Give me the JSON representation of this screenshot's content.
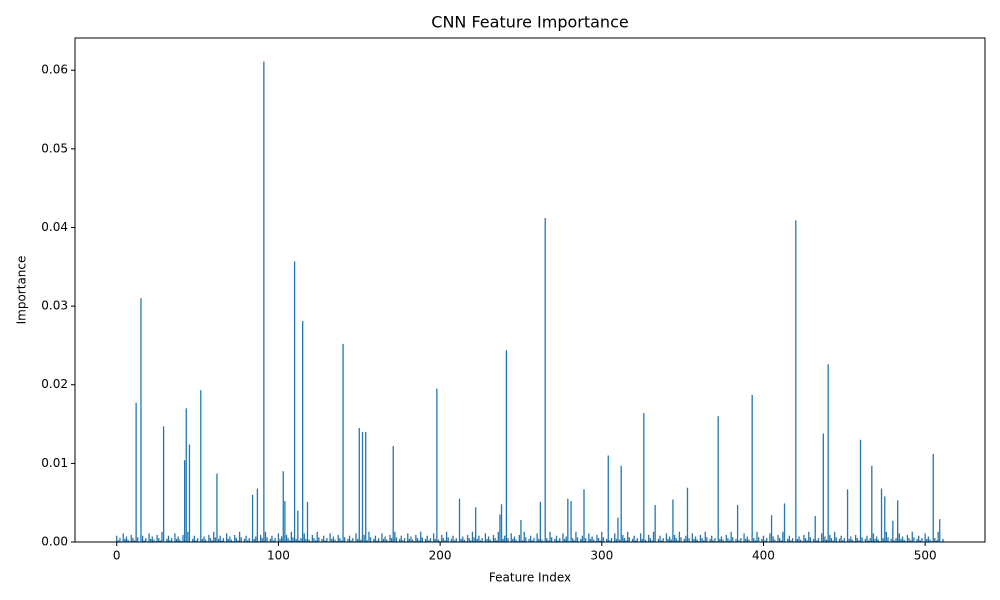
{
  "chart_data": {
    "type": "bar",
    "title": "CNN Feature Importance",
    "xlabel": "Feature Index",
    "ylabel": "Importance",
    "color": "#1f77b4",
    "xlim": [
      -25.8,
      537
    ],
    "xticks": [
      0,
      100,
      200,
      300,
      400,
      500
    ],
    "ylim": [
      0,
      0.0641
    ],
    "yticks": [
      {
        "value": 0,
        "label": "0.00"
      },
      {
        "value": 0.01,
        "label": "0.01"
      },
      {
        "value": 0.02,
        "label": "0.02"
      },
      {
        "value": 0.03,
        "label": "0.03"
      },
      {
        "value": 0.04,
        "label": "0.04"
      },
      {
        "value": 0.05,
        "label": "0.05"
      },
      {
        "value": 0.06,
        "label": "0.06"
      }
    ],
    "values": [
      0.0008,
      0.0002,
      0.0005,
      0,
      0.0011,
      0.0004,
      0.0007,
      0.0003,
      0.0001,
      0.0009,
      0.0005,
      0.0002,
      0.0177,
      0.0006,
      0,
      0.031,
      0.0008,
      0.0002,
      0.0005,
      0,
      0.0011,
      0.0004,
      0.0007,
      0.0003,
      0.0001,
      0.0009,
      0.0005,
      0.0002,
      0.0013,
      0.0147,
      0,
      0.0004,
      0.0008,
      0.0002,
      0.0005,
      0,
      0.0011,
      0.0004,
      0.0007,
      0.0003,
      0.0001,
      0.0009,
      0.0104,
      0.017,
      0.0013,
      0.0124,
      0,
      0.0004,
      0.0008,
      0.0002,
      0.0005,
      0,
      0.0193,
      0.0004,
      0.0007,
      0.0003,
      0.0001,
      0.0009,
      0.0005,
      0.0002,
      0.0013,
      0.0006,
      0.0087,
      0.0004,
      0.0008,
      0.0002,
      0.0005,
      0,
      0.0011,
      0.0004,
      0.0007,
      0.0003,
      0.0001,
      0.0009,
      0.0005,
      0.0002,
      0.0013,
      0.0006,
      0,
      0.0004,
      0.0008,
      0.0002,
      0.0005,
      0,
      0.006,
      0.0004,
      0.0007,
      0.0068,
      0.0001,
      0.0009,
      0.0005,
      0.0611,
      0.0013,
      0.0006,
      0,
      0.0004,
      0.0008,
      0.0002,
      0.0005,
      0,
      0.0011,
      0.0004,
      0.0007,
      0.009,
      0.0052,
      0.0009,
      0.0005,
      0.0002,
      0.0013,
      0.0006,
      0.0357,
      0.0004,
      0.004,
      0.0002,
      0.0005,
      0.0281,
      0.0011,
      0.0004,
      0.0051,
      0.0003,
      0.0001,
      0.0009,
      0.0005,
      0.0002,
      0.0013,
      0.0006,
      0,
      0.0004,
      0.0008,
      0.0002,
      0.0005,
      0,
      0.0011,
      0.0004,
      0.0007,
      0.0003,
      0.0001,
      0.0009,
      0.0005,
      0.0002,
      0.0252,
      0.0006,
      0,
      0.0004,
      0.0008,
      0.0002,
      0.0005,
      0,
      0.0011,
      0.0004,
      0.0145,
      0.0003,
      0.014,
      0.0009,
      0.014,
      0.0002,
      0.0013,
      0.0006,
      0,
      0.0004,
      0.0008,
      0.0002,
      0.0005,
      0,
      0.0011,
      0.0004,
      0.0007,
      0.0003,
      0.0001,
      0.0009,
      0.0005,
      0.0122,
      0.0013,
      0.0006,
      0,
      0.0004,
      0.0008,
      0.0002,
      0.0005,
      0,
      0.0011,
      0.0004,
      0.0007,
      0.0003,
      0.0001,
      0.0009,
      0.0005,
      0.0002,
      0.0013,
      0.0006,
      0,
      0.0004,
      0.0008,
      0.0002,
      0.0005,
      0,
      0.0011,
      0.0004,
      0.0195,
      0.0003,
      0.0001,
      0.0009,
      0.0005,
      0.0002,
      0.0013,
      0.0006,
      0,
      0.0004,
      0.0008,
      0.0002,
      0.0005,
      0,
      0.0055,
      0.0004,
      0.0007,
      0.0003,
      0.0001,
      0.0009,
      0.0005,
      0.0002,
      0.0013,
      0.0006,
      0.0044,
      0.0004,
      0.0008,
      0.0002,
      0.0005,
      0,
      0.0011,
      0.0004,
      0.0007,
      0.0003,
      0.0001,
      0.0009,
      0.0005,
      0.0002,
      0.0013,
      0.0035,
      0.0048,
      0.0004,
      0.0008,
      0.0244,
      0.0005,
      0,
      0.0011,
      0.0004,
      0.0007,
      0.0003,
      0.0001,
      0.0009,
      0.0028,
      0.0002,
      0.0013,
      0.0006,
      0,
      0.0004,
      0.0008,
      0.0002,
      0.0005,
      0,
      0.0011,
      0.0004,
      0.0051,
      0.0003,
      0.0001,
      0.0412,
      0.0005,
      0.0002,
      0.0013,
      0.0006,
      0,
      0.0004,
      0.0008,
      0.0002,
      0.0005,
      0,
      0.0011,
      0.0004,
      0.0007,
      0.0055,
      0.0001,
      0.0052,
      0.0005,
      0.0002,
      0.0013,
      0.0006,
      0,
      0.0004,
      0.0008,
      0.0067,
      0.0005,
      0,
      0.0011,
      0.0004,
      0.0007,
      0.0003,
      0.0001,
      0.0009,
      0.0005,
      0.0002,
      0.0013,
      0.0006,
      0,
      0.0004,
      0.011,
      0.0002,
      0.0005,
      0,
      0.0011,
      0.0004,
      0.0031,
      0.0003,
      0.0097,
      0.0009,
      0.0005,
      0.0002,
      0.0013,
      0.0006,
      0,
      0.0004,
      0.0008,
      0.0002,
      0.0005,
      0,
      0.0011,
      0.0004,
      0.0164,
      0.0003,
      0.0001,
      0.0009,
      0.0005,
      0.0002,
      0.0013,
      0.0047,
      0,
      0.0004,
      0.0008,
      0.0002,
      0.0005,
      0,
      0.0011,
      0.0004,
      0.0007,
      0.0003,
      0.0054,
      0.0009,
      0.0005,
      0.0002,
      0.0013,
      0.0006,
      0,
      0.0004,
      0.0008,
      0.0069,
      0.0005,
      0,
      0.0011,
      0.0004,
      0.0007,
      0.0003,
      0.0001,
      0.0009,
      0.0005,
      0.0002,
      0.0013,
      0.0006,
      0,
      0.0004,
      0.0008,
      0.0002,
      0.0005,
      0,
      0.016,
      0.0004,
      0.0007,
      0.0003,
      0.0001,
      0.0009,
      0.0005,
      0.0002,
      0.0013,
      0.0006,
      0,
      0.0004,
      0.0047,
      0.0002,
      0.0005,
      0,
      0.0011,
      0.0004,
      0.0007,
      0.0003,
      0.0001,
      0.0187,
      0.0005,
      0.0002,
      0.0013,
      0.0006,
      0,
      0.0004,
      0.0008,
      0.0002,
      0.0005,
      0,
      0.0011,
      0.0034,
      0.0007,
      0.0003,
      0.0001,
      0.0009,
      0.0005,
      0.0002,
      0.0013,
      0.0049,
      0,
      0.0004,
      0.0008,
      0.0002,
      0.0005,
      0,
      0.0409,
      0.0004,
      0.0007,
      0.0003,
      0.0001,
      0.0009,
      0.0005,
      0.0002,
      0.0013,
      0.0006,
      0,
      0.0004,
      0.0033,
      0.0002,
      0.0005,
      0,
      0.0011,
      0.0138,
      0.0007,
      0.0003,
      0.0226,
      0.0009,
      0.0005,
      0.0002,
      0.0013,
      0.0006,
      0,
      0.0004,
      0.0008,
      0.0002,
      0.0005,
      0,
      0.0067,
      0.0004,
      0.0007,
      0.0003,
      0.0001,
      0.0009,
      0.0005,
      0.0002,
      0.013,
      0.0006,
      0,
      0.0004,
      0.0008,
      0.0002,
      0.0005,
      0.0097,
      0.0011,
      0.0004,
      0.0007,
      0.0003,
      0.0001,
      0.0068,
      0.0005,
      0.0058,
      0.0013,
      0.0006,
      0,
      0.0004,
      0.0027,
      0.0002,
      0.0005,
      0.0053,
      0.0011,
      0.0004,
      0.0007,
      0.0003,
      0.0001,
      0.0009,
      0.0005,
      0.0002,
      0.0013,
      0.0006,
      0,
      0.0004,
      0.0008,
      0.0002,
      0.0005,
      0,
      0.0011,
      0.0004,
      0.0007,
      0.0003,
      0.0001,
      0.0112,
      0.0005,
      0.0002,
      0.0013,
      0.0029,
      0,
      0.0004
    ]
  }
}
